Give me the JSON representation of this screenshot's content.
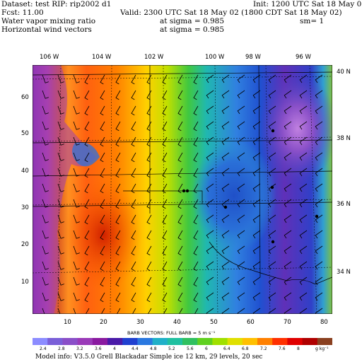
{
  "header": {
    "dataset": "Dataset: test   RIP: rip2002 d1",
    "init": "Init: 1200 UTC Sat 18 May 02",
    "fcst": "Fcst:     11.00",
    "valid": "Valid: 2300 UTC Sat 18 May 02 (1800 CDT Sat 18 May 02)",
    "field1": "Water vapor mixing ratio",
    "field1_level": "at sigma = 0.985",
    "field1_sm": "sm= 1",
    "field2": "Horizontal wind vectors",
    "field2_level": "at sigma = 0.985"
  },
  "axes": {
    "top_longitudes": [
      "106 W",
      "104 W",
      "102 W",
      "100 W",
      "98 W",
      "96 W"
    ],
    "right_latitudes": [
      "40 N",
      "38 N",
      "36 N",
      "34 N"
    ],
    "left_grid_ticks": [
      "60",
      "50",
      "40",
      "30",
      "20",
      "10"
    ],
    "bottom_grid_ticks": [
      "10",
      "20",
      "30",
      "40",
      "50",
      "60",
      "70",
      "80"
    ]
  },
  "legend": {
    "barb_text": "BARB VECTORS:  FULL BARB = 5 m s⁻¹",
    "levels": [
      "2.4",
      "2.8",
      "3.2",
      "3.6",
      "4",
      "4.4",
      "4.8",
      "5.2",
      "5.6",
      "6",
      "6.4",
      "6.8",
      "7.2",
      "7.6",
      "8",
      "g kg⁻¹"
    ],
    "colors": [
      "#8c8cff",
      "#7a5fd8",
      "#8a4fc8",
      "#9a3ab8",
      "#8a1aa0",
      "#4a1aa8",
      "#2040d0",
      "#2a78e0",
      "#20b0c8",
      "#20c0a0",
      "#30c060",
      "#60d020",
      "#a0e000",
      "#e0e000",
      "#ffc000",
      "#ff8000",
      "#ff3000",
      "#e00000",
      "#b00000",
      "#8a4020"
    ]
  },
  "footer": {
    "model_info": "Model info: V3.5.0   Grell     Blackadar   Simple ice    12 km,  29 levels,   20 sec"
  }
}
